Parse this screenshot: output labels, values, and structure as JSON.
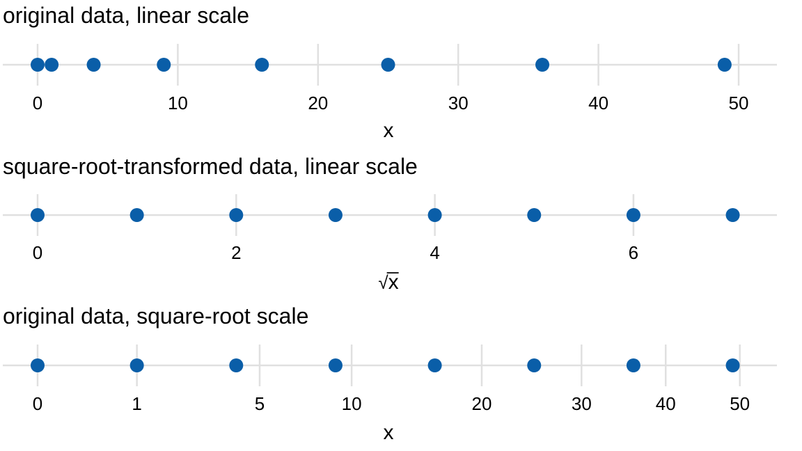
{
  "colors": {
    "point": "#0a5ea8",
    "grid": "#e0e0e0"
  },
  "chart_data": [
    {
      "type": "scatter",
      "title": "original data, linear scale",
      "xlabel": "x",
      "xlabel_is_sqrt": false,
      "scale": "linear",
      "xlim": [
        0,
        52
      ],
      "ticks": [
        0,
        10,
        20,
        30,
        40,
        50
      ],
      "tick_labels": [
        "0",
        "10",
        "20",
        "30",
        "40",
        "50"
      ],
      "x": [
        0,
        1,
        4,
        9,
        16,
        25,
        36,
        49
      ]
    },
    {
      "type": "scatter",
      "title": "square-root-transformed data, linear scale",
      "xlabel": "x",
      "xlabel_is_sqrt": true,
      "scale": "linear",
      "xlim": [
        0,
        7.1
      ],
      "ticks": [
        0,
        2,
        4,
        6
      ],
      "tick_labels": [
        "0",
        "2",
        "4",
        "6"
      ],
      "x": [
        0,
        1,
        2,
        3,
        4,
        5,
        6,
        7
      ]
    },
    {
      "type": "scatter",
      "title": "original data, square-root scale",
      "xlabel": "x",
      "xlabel_is_sqrt": false,
      "scale": "sqrt",
      "xlim": [
        0,
        52
      ],
      "ticks": [
        0,
        1,
        5,
        10,
        20,
        30,
        40,
        50
      ],
      "tick_labels": [
        "0",
        "1",
        "5",
        "10",
        "20",
        "30",
        "40",
        "50"
      ],
      "x": [
        0,
        1,
        4,
        9,
        16,
        25,
        36,
        49
      ]
    }
  ]
}
